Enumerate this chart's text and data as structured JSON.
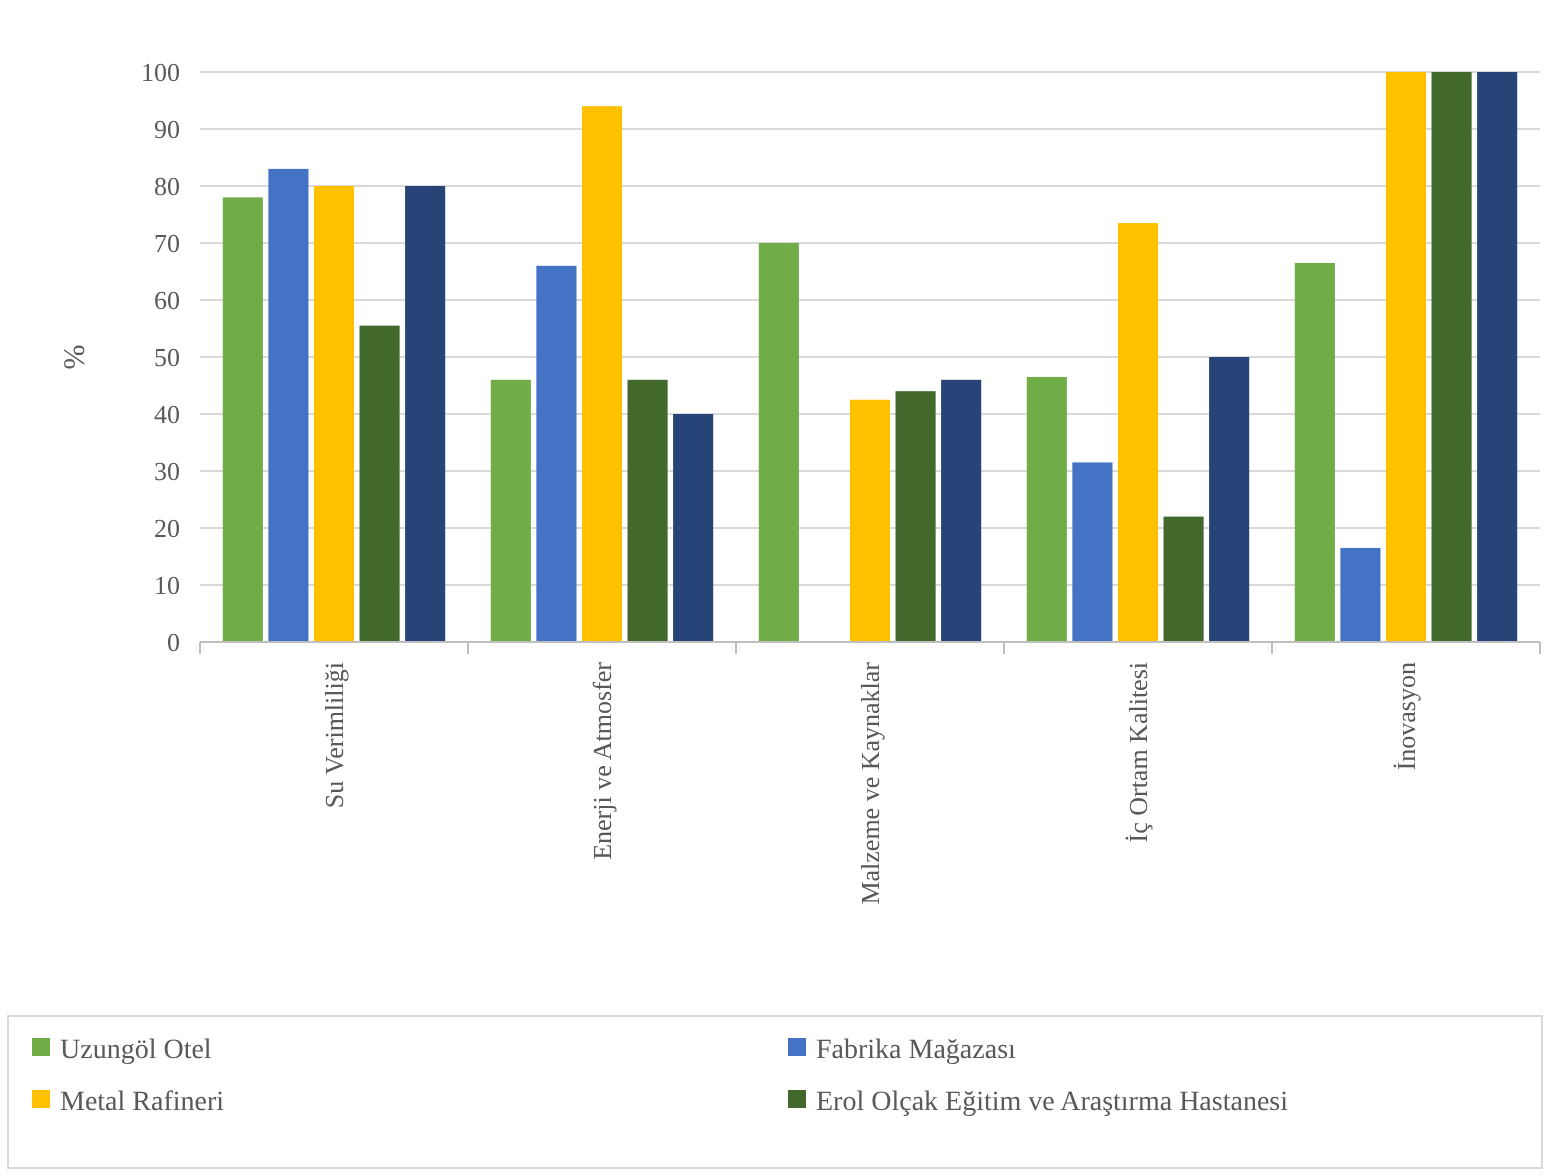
{
  "chart_data": {
    "type": "bar",
    "ylabel": "%",
    "categories": [
      "Su Verimliliği",
      "Enerji ve Atmosfer",
      "Malzeme ve Kaynaklar",
      "İç Ortam Kalitesi",
      "İnovasyon"
    ],
    "series": [
      {
        "name": "Uzungöl Otel",
        "color": "#70ad47",
        "values": [
          78,
          46,
          70,
          46.5,
          66.5
        ]
      },
      {
        "name": "Fabrika Mağazası",
        "color": "#4472c4",
        "values": [
          83,
          66,
          null,
          31.5,
          16.5
        ]
      },
      {
        "name": "Metal Rafineri",
        "color": "#ffc000",
        "values": [
          80,
          94,
          42.5,
          73.5,
          100
        ]
      },
      {
        "name": "Erol Olçak Eğitim ve Araştırma Hastanesi",
        "color": "#43682b",
        "values": [
          55.5,
          46,
          44,
          22,
          100
        ]
      },
      {
        "color": "#264478",
        "values": [
          80,
          40,
          46,
          50,
          100
        ]
      }
    ],
    "ylim": [
      0,
      100
    ],
    "yticks": [
      0,
      10,
      20,
      30,
      40,
      50,
      60,
      70,
      80,
      90,
      100
    ],
    "grid": "y",
    "legend": "bottom"
  }
}
